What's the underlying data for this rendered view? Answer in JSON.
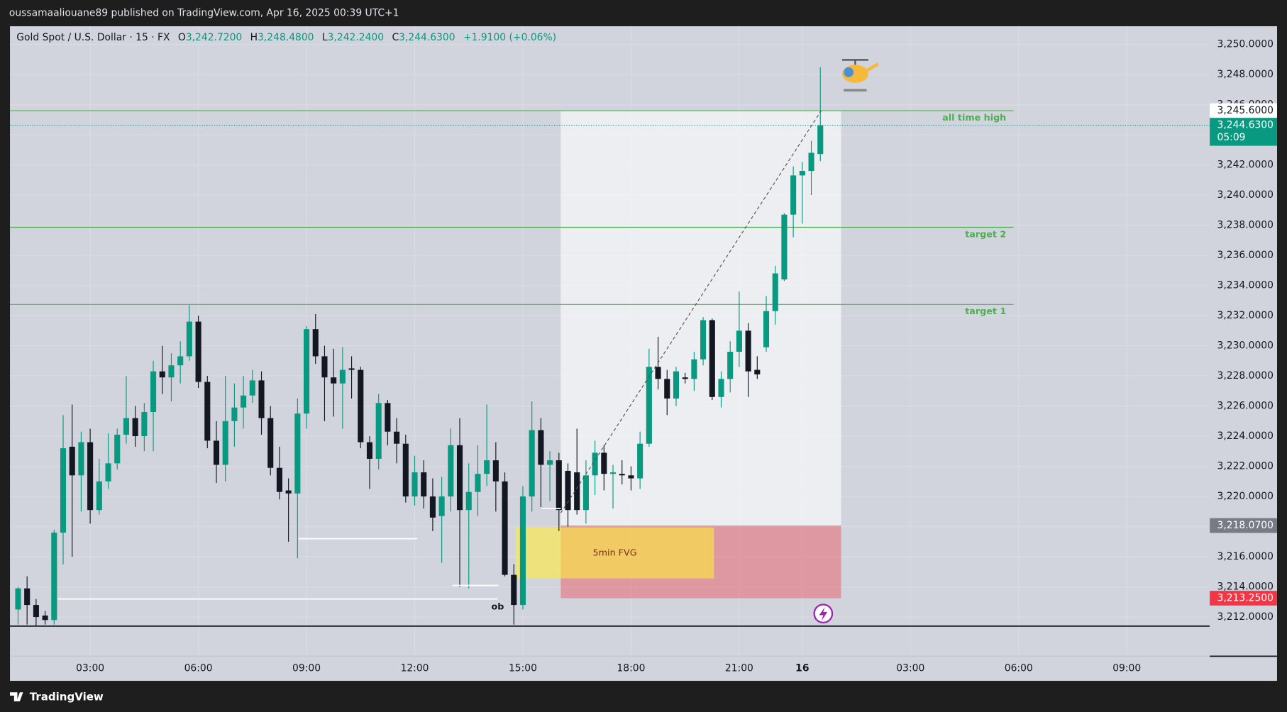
{
  "header": "oussamaaliouane89 published on TradingView.com, Apr 16, 2025 00:39 UTC+1",
  "footer": "TradingView",
  "chart_data": {
    "type": "candlestick",
    "title": "Gold Spot / U.S. Dollar · 15 · FX",
    "legend": {
      "open_label": "O",
      "open": "3,242.7200",
      "high_label": "H",
      "high": "3,248.4800",
      "low_label": "L",
      "low": "3,242.2400",
      "close_label": "C",
      "close": "3,244.6300",
      "change": "+1.9100 (+0.06%)"
    },
    "open": [
      3212.5,
      3213.9,
      3212.8,
      3212.1,
      3211.8,
      3217.6,
      3223.3,
      3221.4,
      3223.6,
      3219.1,
      3221.0,
      3222.2,
      3224.1,
      3225.2,
      3224.0,
      3225.6,
      3228.3,
      3227.9,
      3228.7,
      3229.3,
      3231.6,
      3227.6,
      3223.7,
      3222.1,
      3225.0,
      3225.9,
      3226.7,
      3227.7,
      3225.2,
      3221.9,
      3220.4,
      3220.2,
      3225.5,
      3231.1,
      3229.3,
      3227.9,
      3227.5,
      3228.5,
      3228.4,
      3223.6,
      3222.5,
      3226.2,
      3224.3,
      3223.5,
      3220.0,
      3221.6,
      3220.0,
      3218.7,
      3220.0,
      3223.4,
      3219.1,
      3220.3,
      3221.5,
      3222.4,
      3221.0,
      3214.8,
      3212.8,
      3220.0,
      3224.4,
      3222.1,
      3222.4,
      3221.7,
      3221.6,
      3219.1,
      3221.4,
      3222.9,
      3221.5,
      3221.5,
      3221.4,
      3221.2,
      3223.5,
      3228.6,
      3227.8,
      3226.5,
      3227.9,
      3227.8,
      3229.1,
      3231.7,
      3226.6,
      3227.8,
      3229.6,
      3231.0,
      3228.4,
      3229.9,
      3232.3,
      3234.4,
      3238.7,
      3241.3,
      3241.6,
      3242.72
    ],
    "high": [
      3214.0,
      3214.7,
      3213.2,
      3212.4,
      3217.8,
      3225.4,
      3226.1,
      3224.3,
      3224.5,
      3222.5,
      3224.2,
      3224.5,
      3228.0,
      3226.0,
      3226.2,
      3229.0,
      3230.0,
      3229.5,
      3230.3,
      3232.7,
      3232.0,
      3228.0,
      3225.0,
      3228.0,
      3227.5,
      3228.0,
      3228.4,
      3228.3,
      3226.0,
      3223.3,
      3221.2,
      3226.5,
      3231.3,
      3232.1,
      3230.0,
      3229.8,
      3229.9,
      3229.3,
      3228.6,
      3224.0,
      3226.8,
      3226.4,
      3225.2,
      3224.1,
      3222.7,
      3222.4,
      3221.2,
      3221.3,
      3224.5,
      3225.2,
      3222.2,
      3223.4,
      3226.1,
      3223.6,
      3221.6,
      3215.5,
      3220.7,
      3226.3,
      3225.2,
      3223.0,
      3222.9,
      3222.2,
      3224.5,
      3222.4,
      3223.7,
      3223.4,
      3222.1,
      3222.4,
      3222.0,
      3224.3,
      3229.8,
      3230.6,
      3228.4,
      3228.6,
      3228.2,
      3229.6,
      3231.9,
      3231.8,
      3228.3,
      3230.3,
      3233.6,
      3231.5,
      3229.3,
      3233.3,
      3235.3,
      3238.8,
      3241.9,
      3242.2,
      3243.6,
      3248.48
    ],
    "low": [
      3211.5,
      3211.5,
      3211.4,
      3211.5,
      3211.5,
      3215.5,
      3216.0,
      3219.0,
      3218.2,
      3218.8,
      3220.5,
      3221.8,
      3223.5,
      3223.3,
      3223.0,
      3223.0,
      3226.8,
      3226.3,
      3227.5,
      3229.0,
      3227.2,
      3223.2,
      3220.9,
      3221.0,
      3223.3,
      3224.5,
      3226.2,
      3224.1,
      3221.4,
      3219.8,
      3217.0,
      3215.9,
      3224.5,
      3228.8,
      3225.0,
      3225.3,
      3224.5,
      3226.5,
      3223.2,
      3220.5,
      3221.8,
      3223.4,
      3222.2,
      3219.6,
      3219.4,
      3219.2,
      3217.7,
      3215.6,
      3219.0,
      3214.0,
      3213.9,
      3218.7,
      3220.7,
      3219.0,
      3214.7,
      3211.5,
      3212.5,
      3219.0,
      3219.3,
      3219.7,
      3217.7,
      3218.0,
      3218.8,
      3218.2,
      3220.1,
      3220.4,
      3219.2,
      3220.8,
      3220.4,
      3220.5,
      3223.3,
      3227.1,
      3225.4,
      3226.0,
      3227.5,
      3227.0,
      3228.7,
      3226.4,
      3225.9,
      3226.9,
      3228.6,
      3226.6,
      3227.8,
      3229.6,
      3231.4,
      3234.3,
      3237.2,
      3238.1,
      3240.0,
      3242.24
    ],
    "close": [
      3213.9,
      3212.8,
      3212.0,
      3211.8,
      3217.6,
      3223.2,
      3221.4,
      3223.6,
      3219.1,
      3221.0,
      3222.2,
      3224.1,
      3225.2,
      3224.0,
      3225.6,
      3228.3,
      3227.9,
      3228.7,
      3229.3,
      3231.6,
      3227.6,
      3223.7,
      3222.1,
      3225.0,
      3225.9,
      3226.7,
      3227.7,
      3225.2,
      3221.9,
      3220.3,
      3220.2,
      3225.5,
      3231.1,
      3229.3,
      3227.9,
      3227.5,
      3228.4,
      3228.4,
      3223.6,
      3222.5,
      3226.2,
      3224.3,
      3223.5,
      3220.0,
      3221.6,
      3220.0,
      3218.6,
      3220.0,
      3223.4,
      3219.1,
      3220.3,
      3221.5,
      3222.4,
      3221.0,
      3214.8,
      3212.8,
      3220.0,
      3224.4,
      3222.1,
      3222.4,
      3219.1,
      3219.1,
      3219.1,
      3221.4,
      3222.9,
      3221.5,
      3221.6,
      3221.4,
      3221.2,
      3223.5,
      3228.6,
      3227.8,
      3226.5,
      3228.3,
      3227.8,
      3229.1,
      3231.7,
      3226.6,
      3227.8,
      3229.6,
      3231.0,
      3228.3,
      3228.1,
      3232.3,
      3234.8,
      3238.7,
      3241.3,
      3241.6,
      3242.8,
      3244.63
    ],
    "up_color": "#089981",
    "down_color": "#131722",
    "grid": true,
    "xlim": [
      -0.9,
      132.2
    ],
    "xticks": [
      {
        "value": 8,
        "label": "03:00"
      },
      {
        "value": 20,
        "label": "06:00"
      },
      {
        "value": 32,
        "label": "09:00"
      },
      {
        "value": 44,
        "label": "12:00"
      },
      {
        "value": 56,
        "label": "15:00"
      },
      {
        "value": 68,
        "label": "18:00"
      },
      {
        "value": 80,
        "label": "21:00"
      },
      {
        "value": 87,
        "label": "16"
      },
      {
        "value": 99,
        "label": "03:00"
      },
      {
        "value": 111,
        "label": "06:00"
      },
      {
        "value": 123,
        "label": "09:00"
      }
    ],
    "ylim": [
      3209.4,
      3251.2
    ],
    "yticks": [
      {
        "value": 3212,
        "label": "3,212.0000"
      },
      {
        "value": 3214,
        "label": "3,214.0000"
      },
      {
        "value": 3216,
        "label": "3,216.0000"
      },
      {
        "value": 3218,
        "label": "3,218.0000"
      },
      {
        "value": 3220,
        "label": "3,220.0000"
      },
      {
        "value": 3222,
        "label": "3,222.0000"
      },
      {
        "value": 3224,
        "label": "3,224.0000"
      },
      {
        "value": 3226,
        "label": "3,226.0000"
      },
      {
        "value": 3228,
        "label": "3,228.0000"
      },
      {
        "value": 3230,
        "label": "3,230.0000"
      },
      {
        "value": 3232,
        "label": "3,232.0000"
      },
      {
        "value": 3234,
        "label": "3,234.0000"
      },
      {
        "value": 3236,
        "label": "3,236.0000"
      },
      {
        "value": 3238,
        "label": "3,238.0000"
      },
      {
        "value": 3240,
        "label": "3,240.0000"
      },
      {
        "value": 3242,
        "label": "3,242.0000"
      },
      {
        "value": 3244,
        "label": "3,244.0000"
      },
      {
        "value": 3246,
        "label": "3,246.0000"
      },
      {
        "value": 3248,
        "label": "3,248.0000"
      },
      {
        "value": 3250,
        "label": "3,250.0000"
      }
    ],
    "levels": [
      {
        "label": "all time high",
        "value": 3245.6
      },
      {
        "label": "target 2",
        "value": 3237.86
      },
      {
        "label": "target 1",
        "value": 3232.74
      }
    ],
    "last_price": {
      "value": 3244.63,
      "label": "3,244.6300",
      "countdown": "05:09"
    },
    "position": {
      "x": [
        60.2,
        91.3
      ],
      "target": {
        "value": 3245.6,
        "label": "3,245.6000"
      },
      "entry": {
        "value": 3218.07,
        "label": "3,218.0700"
      },
      "stop": {
        "value": 3213.25,
        "label": "3,213.2500"
      }
    },
    "fvg": {
      "label": "5min FVG",
      "x": [
        55.2,
        77.2
      ],
      "y": [
        3214.56,
        3217.94
      ]
    },
    "ob": {
      "label": "ob",
      "value": 3213.2,
      "x": [
        4.4,
        53.2
      ]
    },
    "rays": [
      {
        "x": [
          31.1,
          44.3
        ],
        "value": 3217.2
      },
      {
        "x": [
          48.2,
          53.3
        ],
        "value": 3214.1
      },
      {
        "x": [
          58.1,
          60.2
        ],
        "value": 3219.2
      }
    ],
    "trend": {
      "x": [
        60.2,
        89.1
      ],
      "y": [
        3218.9,
        3245.6
      ]
    },
    "support": 3211.4
  }
}
